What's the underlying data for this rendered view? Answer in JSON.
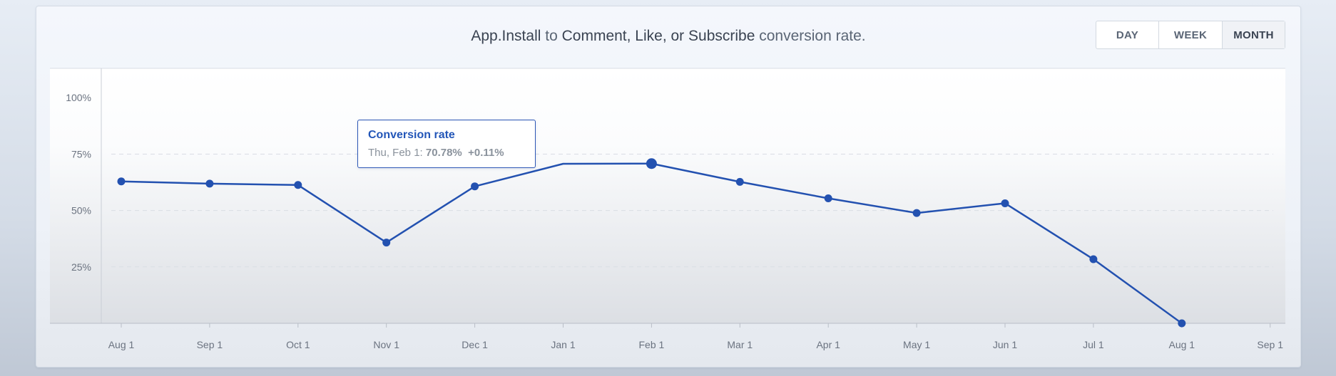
{
  "header": {
    "title_parts": {
      "metric_a": "App.Install",
      "to": "to",
      "metric_b": "Comment, Like, or Subscribe",
      "suffix": "conversion rate."
    }
  },
  "period_toggle": {
    "day_label": "DAY",
    "week_label": "WEEK",
    "month_label": "MONTH",
    "selected": "MONTH"
  },
  "tooltip": {
    "title": "Conversion rate",
    "date": "Thu, Feb 1:",
    "value": "70.78%",
    "change": "+0.11%"
  },
  "colors": {
    "line": "#2351b0",
    "grid": "#d9dde3",
    "axis_text": "#6b7380"
  },
  "chart_data": {
    "type": "line",
    "title": "App.Install to Comment, Like, or Subscribe conversion rate.",
    "xlabel": "",
    "ylabel": "",
    "x_ticks": [
      "Aug 1",
      "Sep 1",
      "Oct 1",
      "Nov 1",
      "Dec 1",
      "Jan 1",
      "Feb 1",
      "Mar 1",
      "Apr 1",
      "May 1",
      "Jun 1",
      "Jul 1",
      "Aug 1",
      "Sep 1"
    ],
    "y_ticks": [
      "25%",
      "50%",
      "75%",
      "100%"
    ],
    "y_tick_values": [
      25,
      50,
      75,
      100
    ],
    "ylim": [
      0,
      113
    ],
    "grid": true,
    "highlighted_point": "Feb 1",
    "series": [
      {
        "x": [
          "Aug 1",
          "Sep 1",
          "Oct 1",
          "Nov 1",
          "Dec 1",
          "Jan 1",
          "Feb 1",
          "Mar 1",
          "Apr 1",
          "May 1",
          "Jun 1",
          "Jul 1",
          "Aug 1"
        ],
        "values": [
          62.9,
          61.9,
          61.3,
          35.8,
          60.7,
          70.7,
          70.78,
          62.7,
          55.4,
          48.9,
          53.2,
          28.4,
          0
        ]
      }
    ]
  }
}
